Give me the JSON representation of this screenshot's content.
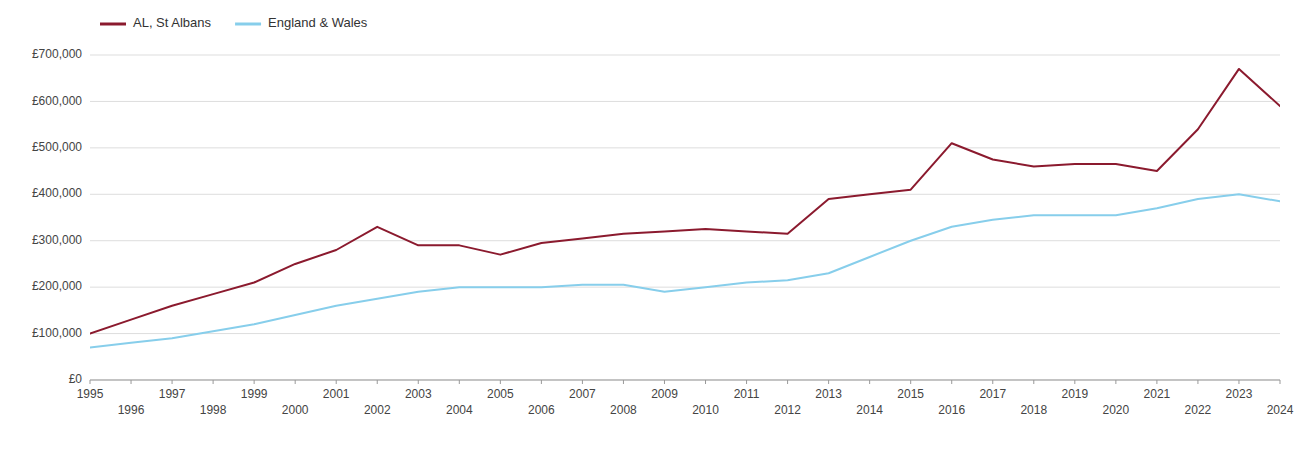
{
  "chart_data": {
    "type": "line",
    "x": [
      1995,
      1996,
      1997,
      1998,
      1999,
      2000,
      2001,
      2002,
      2003,
      2004,
      2005,
      2006,
      2007,
      2008,
      2009,
      2010,
      2011,
      2012,
      2013,
      2014,
      2015,
      2016,
      2017,
      2018,
      2019,
      2020,
      2021,
      2022,
      2023,
      2024
    ],
    "series": [
      {
        "name": "AL, St Albans",
        "color": "#8B1A2E",
        "values": [
          100000,
          130000,
          160000,
          185000,
          210000,
          250000,
          280000,
          330000,
          290000,
          290000,
          270000,
          295000,
          305000,
          315000,
          320000,
          325000,
          320000,
          315000,
          390000,
          400000,
          410000,
          510000,
          475000,
          460000,
          465000,
          465000,
          450000,
          540000,
          670000,
          590000
        ]
      },
      {
        "name": "England & Wales",
        "color": "#87CEEB",
        "values": [
          70000,
          80000,
          90000,
          105000,
          120000,
          140000,
          160000,
          175000,
          190000,
          200000,
          200000,
          200000,
          205000,
          205000,
          190000,
          200000,
          210000,
          215000,
          230000,
          265000,
          300000,
          330000,
          345000,
          355000,
          355000,
          355000,
          370000,
          390000,
          400000,
          385000
        ]
      }
    ],
    "xlim": [
      1995,
      2024
    ],
    "xticks": [
      1995,
      1996,
      1997,
      1998,
      1999,
      2000,
      2001,
      2002,
      2003,
      2004,
      2005,
      2006,
      2007,
      2008,
      2009,
      2010,
      2011,
      2012,
      2013,
      2014,
      2015,
      2016,
      2017,
      2018,
      2019,
      2020,
      2021,
      2022,
      2023,
      2024
    ],
    "ylim": [
      0,
      700000
    ],
    "yticks": [
      {
        "value": 0,
        "label": "£0"
      },
      {
        "value": 100000,
        "label": "£100,000"
      },
      {
        "value": 200000,
        "label": "£200,000"
      },
      {
        "value": 300000,
        "label": "£300,000"
      },
      {
        "value": 400000,
        "label": "£400,000"
      },
      {
        "value": 500000,
        "label": "£500,000"
      },
      {
        "value": 600000,
        "label": "£600,000"
      },
      {
        "value": 700000,
        "label": "£700,000"
      }
    ],
    "grid": true,
    "legend": "top-left"
  }
}
